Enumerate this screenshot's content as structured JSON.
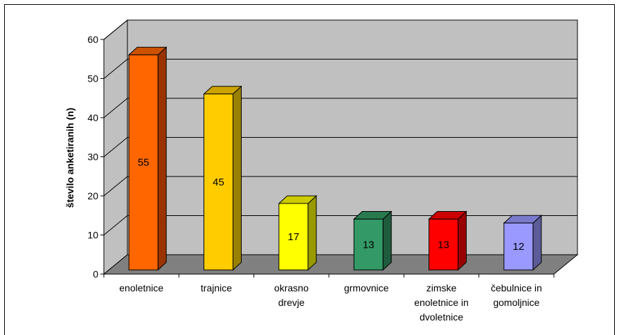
{
  "chart_data": {
    "type": "bar",
    "title": "",
    "xlabel": "",
    "ylabel": "število anketiranih (n)",
    "ylim": [
      0,
      60
    ],
    "yticks": [
      0,
      10,
      20,
      30,
      40,
      50,
      60
    ],
    "grid": true,
    "style": "3d-column",
    "categories": [
      [
        "enoletnice"
      ],
      [
        "trajnice"
      ],
      [
        "okrasno",
        "drevje"
      ],
      [
        "grmovnice"
      ],
      [
        "zimske",
        "enoletnice in",
        "dvoletnice"
      ],
      [
        "čebulnice in",
        "gomoljnice"
      ]
    ],
    "values": [
      55,
      45,
      17,
      13,
      13,
      12
    ],
    "colors": [
      "#FF6600",
      "#FFCC00",
      "#FFFF00",
      "#339966",
      "#FF0000",
      "#9999FF"
    ],
    "colors_side": [
      "#993300",
      "#998000",
      "#999900",
      "#1E5C3D",
      "#990000",
      "#5C5C99"
    ],
    "colors_top": [
      "#CC5200",
      "#CCA300",
      "#CCCC00",
      "#29794F",
      "#CC0000",
      "#7A7ACC"
    ],
    "wall_color": "#C0C0C0",
    "floor_color": "#808080"
  }
}
